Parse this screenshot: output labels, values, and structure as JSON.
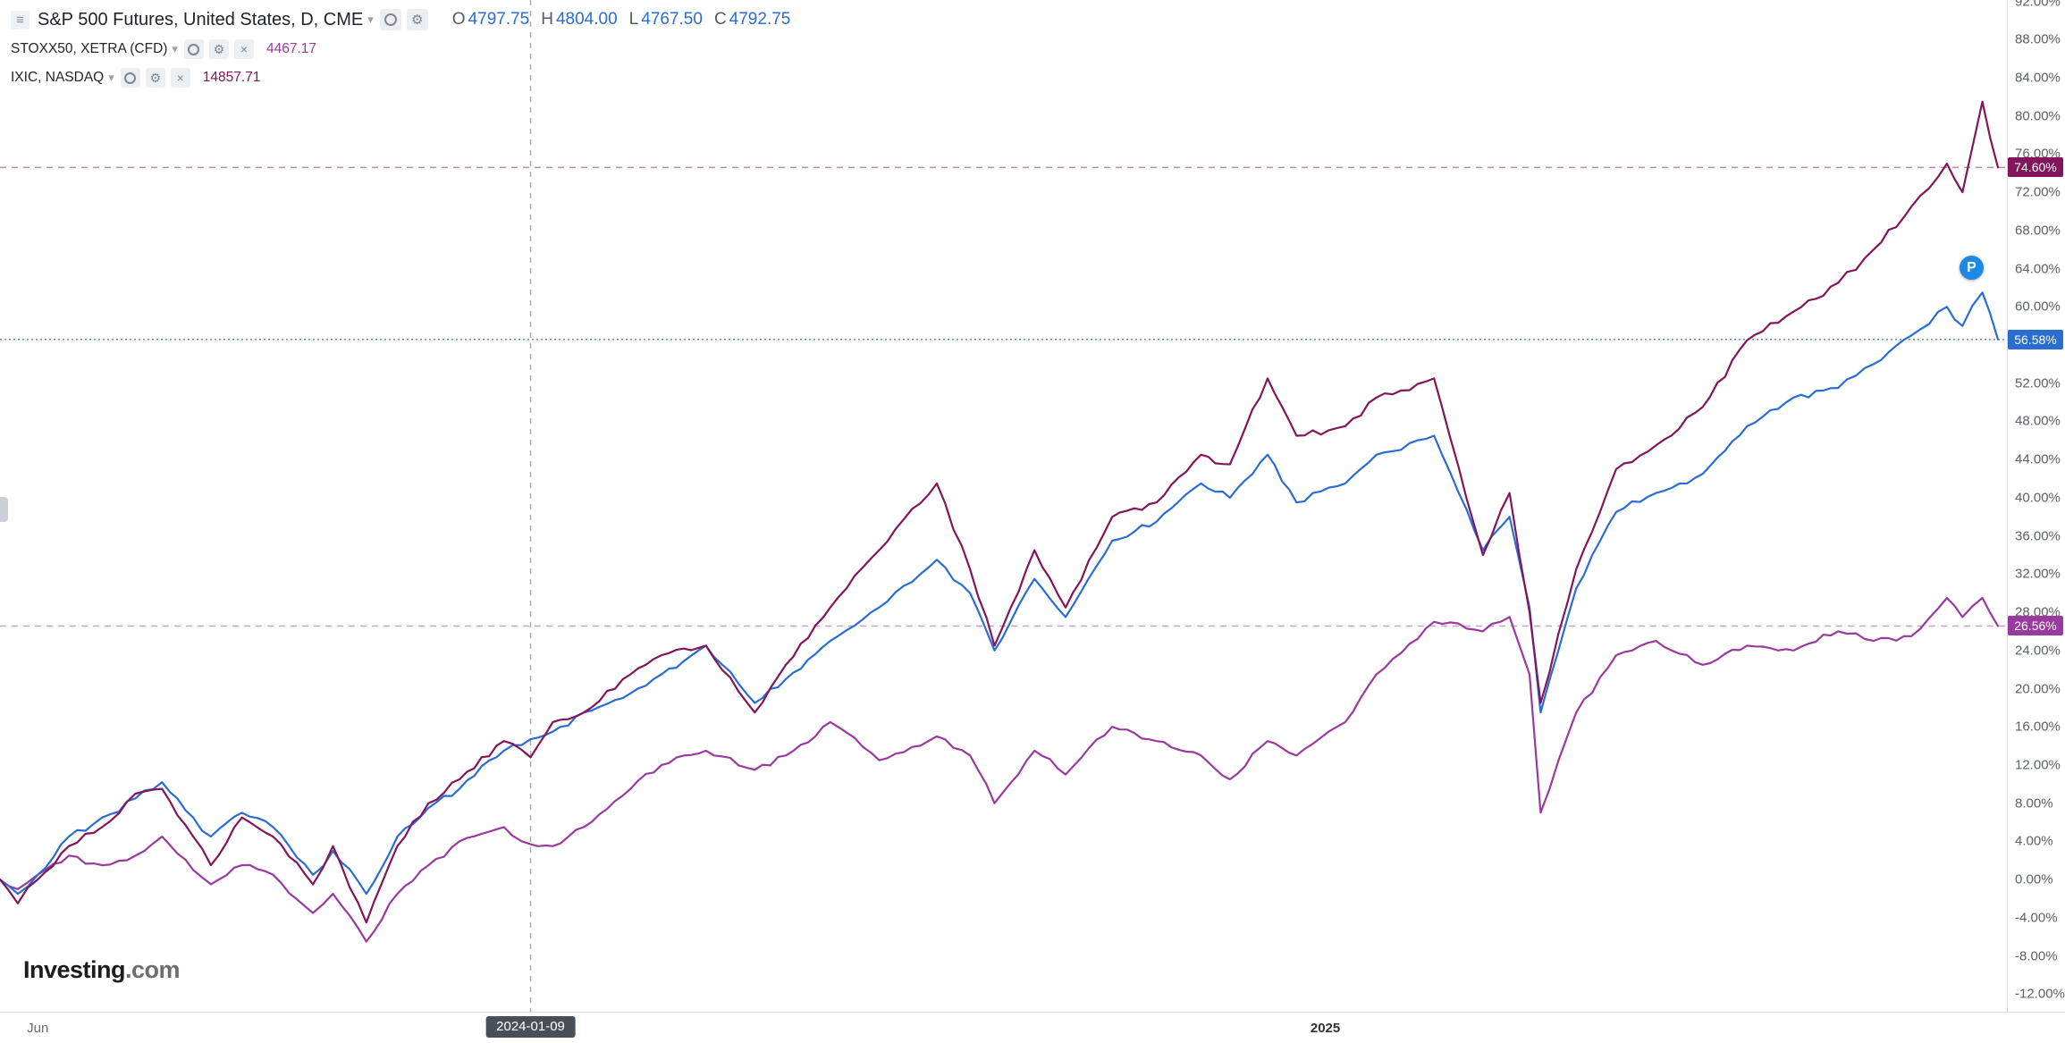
{
  "legend": {
    "menu_icon": "≡",
    "caret_icon": "▾",
    "gear_icon": "⚙",
    "close_icon": "×",
    "main": {
      "title": "S&P 500 Futures, United States, D, CME",
      "ohlc": [
        {
          "k": "O",
          "v": "4797.75"
        },
        {
          "k": "H",
          "v": "4804.00"
        },
        {
          "k": "L",
          "v": "4767.50"
        },
        {
          "k": "C",
          "v": "4792.75"
        }
      ]
    },
    "overlays": [
      {
        "title": "STOXX50, XETRA (CFD)",
        "value": "4467.17",
        "series_id": "stoxx"
      },
      {
        "title": "IXIC, NASDAQ",
        "value": "14857.71",
        "series_id": "ixic"
      }
    ]
  },
  "p_marker": {
    "label": "P"
  },
  "logo": {
    "brand": "Investing",
    "suffix": ".com"
  },
  "chart_data": {
    "type": "line",
    "mode": "percent-change",
    "title": "S&P 500 Futures vs STOXX50 vs IXIC (% change)",
    "y_axis": {
      "unit": "%",
      "min": -12,
      "max": 92,
      "step": 4
    },
    "x_axis": {
      "total_days": 900,
      "ticks": [
        {
          "label": "Jun",
          "day": 17,
          "strong": false
        },
        {
          "label": "2025",
          "day": 597,
          "strong": true
        }
      ],
      "crosshair": {
        "day": 239,
        "label": "2024-01-09"
      }
    },
    "x_days": [
      0,
      8,
      17,
      31,
      46,
      61,
      73,
      87,
      95,
      109,
      123,
      141,
      150,
      165,
      179,
      193,
      207,
      227,
      239,
      249,
      263,
      284,
      298,
      318,
      340,
      354,
      374,
      396,
      422,
      437,
      448,
      466,
      480,
      501,
      521,
      541,
      554,
      571,
      584,
      606,
      620,
      646,
      668,
      680,
      689,
      694,
      710,
      728,
      746,
      767,
      787,
      808,
      828,
      844,
      861,
      877,
      884,
      893,
      900
    ],
    "series": [
      {
        "id": "sp500",
        "name": "S&P 500 Futures, United States, D, CME",
        "color": "#2a6dd0",
        "last_label": "56.58%",
        "last_value": 56.58,
        "values": [
          0,
          -1.5,
          0.5,
          4.5,
          6.5,
          8.5,
          10.2,
          6.5,
          4.5,
          7,
          5.5,
          0.5,
          3,
          -1.5,
          4.5,
          7.5,
          9.5,
          13.5,
          14.7,
          15.5,
          17.5,
          19.5,
          21.5,
          24.5,
          18.5,
          21,
          25,
          28.5,
          33.5,
          30,
          24,
          31.5,
          27.5,
          35.5,
          37.5,
          41.5,
          40,
          44.5,
          39.5,
          41.5,
          44.5,
          46.5,
          34.5,
          38,
          28.5,
          17.5,
          30.5,
          38.5,
          40.5,
          42.5,
          47.5,
          50.5,
          51.5,
          54,
          57,
          60,
          58,
          61.5,
          56.58
        ]
      },
      {
        "id": "ixic",
        "name": "IXIC, NASDAQ",
        "color": "#83155c",
        "last_label": "74.60%",
        "last_value": 74.6,
        "values": [
          0,
          -2.5,
          0,
          3.5,
          5.5,
          9,
          9.5,
          4.5,
          1.5,
          6.5,
          4.5,
          -0.5,
          3.5,
          -4.5,
          3.5,
          8,
          10.5,
          14.5,
          12.8,
          16.5,
          17.5,
          21.5,
          23.5,
          24.5,
          17.5,
          22.5,
          28.5,
          34.5,
          41.5,
          32.5,
          24.5,
          34.5,
          28.5,
          38,
          39.5,
          44.5,
          43.5,
          52.5,
          46.5,
          47.5,
          50.5,
          52.5,
          34,
          40.5,
          28,
          18.5,
          32.5,
          43,
          45.5,
          49.5,
          56.5,
          59.5,
          62.5,
          66,
          70.5,
          75,
          72,
          81.5,
          74.6
        ]
      },
      {
        "id": "stoxx",
        "name": "STOXX50, XETRA (CFD)",
        "color": "#9a3a9e",
        "last_label": "26.56%",
        "last_value": 26.56,
        "values": [
          0,
          -1,
          0.5,
          2.5,
          1.5,
          2.5,
          4.5,
          1,
          -0.5,
          1.5,
          0.5,
          -3.5,
          -1.5,
          -6.5,
          -1.5,
          1.5,
          4,
          5.5,
          3.7,
          3.5,
          5.5,
          9.5,
          12,
          13.5,
          11.5,
          13,
          16.5,
          12.5,
          15,
          13,
          8,
          13.5,
          11,
          16,
          14.5,
          13,
          10.5,
          14.5,
          13,
          16.5,
          21.5,
          27,
          26,
          27.5,
          21.5,
          7,
          17.5,
          23.5,
          25,
          22.5,
          24.5,
          24,
          26,
          25,
          25.5,
          29.5,
          27.5,
          29.5,
          26.56
        ]
      }
    ]
  }
}
